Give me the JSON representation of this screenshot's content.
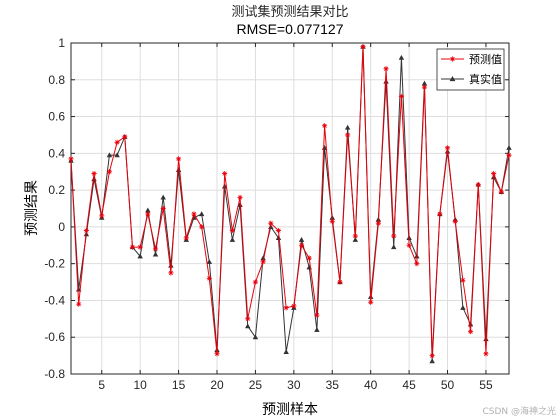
{
  "chart_data": {
    "type": "line",
    "title": "测试集预测结果对比",
    "subtitle": "RMSE=0.077127",
    "xlabel": "预测样本",
    "ylabel": "预测结果",
    "xlim": [
      1,
      58
    ],
    "ylim": [
      -0.8,
      1
    ],
    "xticks": [
      5,
      10,
      15,
      20,
      25,
      30,
      35,
      40,
      45,
      50,
      55
    ],
    "yticks": [
      -0.8,
      -0.6,
      -0.4,
      -0.2,
      0,
      0.2,
      0.4,
      0.6,
      0.8,
      1
    ],
    "ytick_labels": [
      "-0.8",
      "-0.6",
      "-0.4",
      "-0.2",
      "0",
      "0.2",
      "0.4",
      "0.6",
      "0.8",
      "1"
    ],
    "grid": true,
    "legend_position": "top-right",
    "x": [
      1,
      2,
      3,
      4,
      5,
      6,
      7,
      8,
      9,
      10,
      11,
      12,
      13,
      14,
      15,
      16,
      17,
      18,
      19,
      20,
      21,
      22,
      23,
      24,
      25,
      26,
      27,
      28,
      29,
      30,
      31,
      32,
      33,
      34,
      35,
      36,
      37,
      38,
      39,
      40,
      41,
      42,
      43,
      44,
      45,
      46,
      47,
      48,
      49,
      50,
      51,
      52,
      53,
      54,
      55,
      56,
      57,
      58
    ],
    "series": [
      {
        "name": "预测值",
        "color": "#e8000b",
        "marker": "star",
        "values": [
          0.37,
          -0.42,
          -0.02,
          0.29,
          0.06,
          0.3,
          0.46,
          0.49,
          -0.11,
          -0.11,
          0.07,
          -0.12,
          0.1,
          -0.25,
          0.37,
          -0.06,
          0.07,
          0.0,
          -0.28,
          -0.69,
          0.29,
          -0.02,
          0.16,
          -0.5,
          -0.3,
          -0.19,
          0.02,
          -0.02,
          -0.44,
          -0.43,
          -0.1,
          -0.17,
          -0.48,
          0.55,
          0.03,
          -0.3,
          0.5,
          -0.05,
          0.98,
          -0.41,
          0.02,
          0.86,
          -0.05,
          0.71,
          -0.1,
          -0.2,
          0.76,
          -0.7,
          0.07,
          0.43,
          0.03,
          -0.29,
          -0.57,
          0.23,
          -0.69,
          0.29,
          0.19,
          0.39
        ]
      },
      {
        "name": "真实值",
        "color": "#333333",
        "marker": "triangle",
        "values": [
          0.36,
          -0.34,
          -0.04,
          0.26,
          0.05,
          0.39,
          0.39,
          0.49,
          -0.11,
          -0.16,
          0.09,
          -0.15,
          0.16,
          -0.21,
          0.31,
          -0.07,
          0.05,
          0.07,
          -0.19,
          -0.67,
          0.22,
          -0.07,
          0.12,
          -0.54,
          -0.6,
          -0.17,
          0.0,
          -0.06,
          -0.68,
          -0.44,
          -0.07,
          -0.22,
          -0.56,
          0.43,
          0.05,
          -0.3,
          0.54,
          -0.07,
          0.98,
          -0.38,
          0.04,
          0.79,
          -0.11,
          0.92,
          -0.06,
          -0.16,
          0.78,
          -0.73,
          0.07,
          0.41,
          0.04,
          -0.44,
          -0.53,
          0.23,
          -0.61,
          0.27,
          0.19,
          0.43
        ]
      }
    ]
  },
  "watermark": "CSDN @海神之光"
}
